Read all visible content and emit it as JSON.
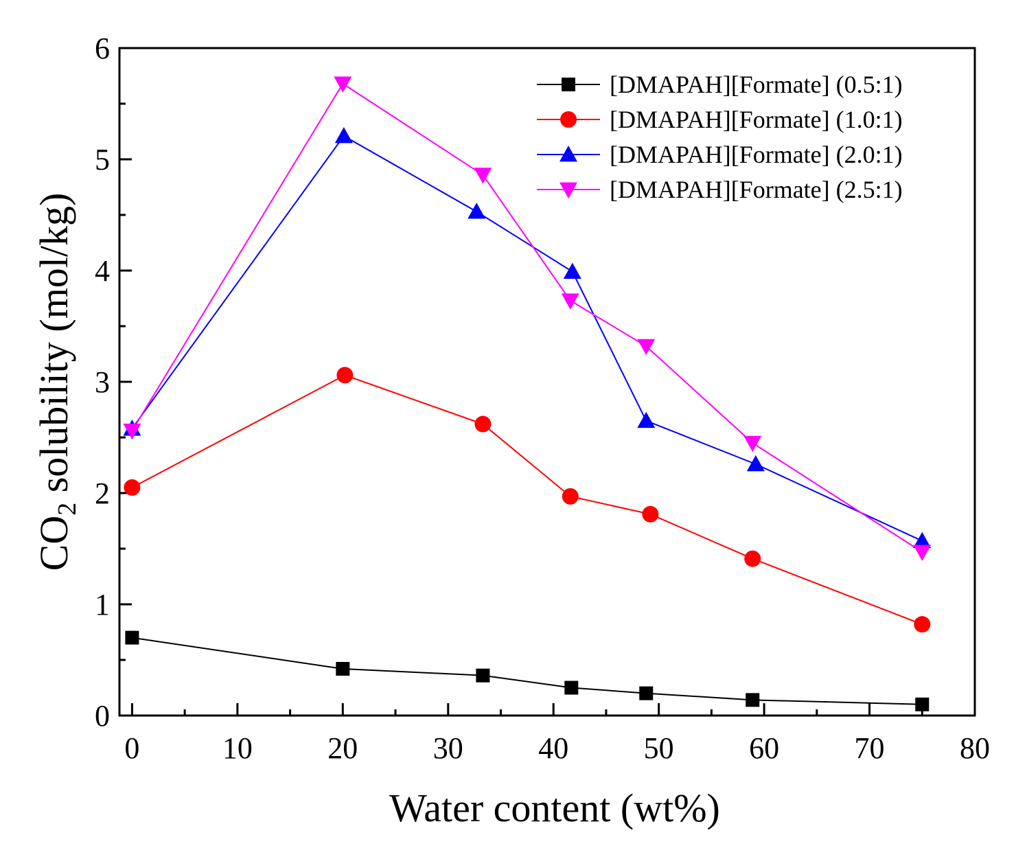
{
  "chart_data": {
    "type": "line",
    "xlabel": "Water content (wt%)",
    "ylabel_parts": [
      "CO",
      "2",
      " solubility (mol/kg)"
    ],
    "xlim": [
      -1.2,
      80
    ],
    "ylim": [
      0,
      6
    ],
    "xticks": [
      0,
      10,
      20,
      30,
      40,
      50,
      60,
      70,
      80
    ],
    "xtick_labels": [
      "0",
      "10",
      "20",
      "30",
      "40",
      "50",
      "60",
      "70",
      "80"
    ],
    "yticks": [
      0,
      1,
      2,
      3,
      4,
      5,
      6
    ],
    "ytick_labels": [
      "0",
      "1",
      "2",
      "3",
      "4",
      "5",
      "6"
    ],
    "grid": false,
    "legend_position": "top-right",
    "series": [
      {
        "name": "[DMAPAH][Formate] (0.5:1)",
        "color": "#000000",
        "marker": "square",
        "x": [
          0,
          20,
          33.3,
          41.7,
          48.8,
          58.9,
          75
        ],
        "y": [
          0.7,
          0.42,
          0.36,
          0.25,
          0.2,
          0.14,
          0.1
        ]
      },
      {
        "name": "[DMAPAH][Formate] (1.0:1)",
        "color": "#ff0000",
        "marker": "circle",
        "x": [
          0,
          20.2,
          33.3,
          41.6,
          49.2,
          58.9,
          75
        ],
        "y": [
          2.05,
          3.06,
          2.62,
          1.97,
          1.81,
          1.41,
          0.82
        ]
      },
      {
        "name": "[DMAPAH][Formate] (2.0:1)",
        "color": "#0000ff",
        "marker": "triangle-up",
        "x": [
          0,
          20.1,
          32.7,
          41.8,
          48.8,
          59.2,
          75
        ],
        "y": [
          2.58,
          5.21,
          4.53,
          3.99,
          2.65,
          2.26,
          1.57
        ]
      },
      {
        "name": "[DMAPAH][Formate] (2.5:1)",
        "color": "#ff00ff",
        "marker": "triangle-down",
        "x": [
          0,
          20,
          33.3,
          41.6,
          48.8,
          58.9,
          75
        ],
        "y": [
          2.56,
          5.68,
          4.86,
          3.73,
          3.32,
          2.45,
          1.47
        ]
      }
    ]
  }
}
